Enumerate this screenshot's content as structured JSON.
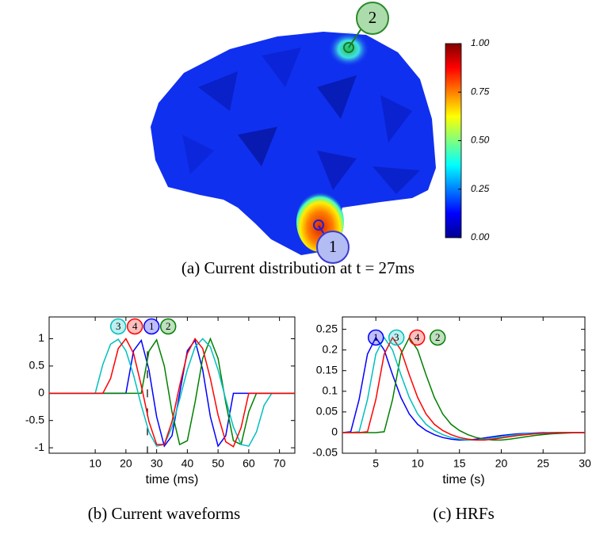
{
  "chart_data": [
    {
      "type": "colorbar",
      "caption": "(a) Current distribution at t = 27ms",
      "clim": [
        0,
        1
      ],
      "cticks": [
        {
          "value": 0,
          "label": "0.00"
        },
        {
          "value": 0.25,
          "label": "0.25"
        },
        {
          "value": 0.5,
          "label": "0.50"
        },
        {
          "value": 0.75,
          "label": "0.75"
        },
        {
          "value": 1,
          "label": "1.00"
        }
      ],
      "markers": [
        "1",
        "2"
      ]
    },
    {
      "type": "line",
      "caption": "(b) Current waveforms",
      "xlabel": "time (ms)",
      "x": [
        -5,
        -2.5,
        0,
        2.5,
        5,
        7.5,
        10,
        12.5,
        15,
        17.5,
        20,
        22.5,
        25,
        27.5,
        30,
        32.5,
        35,
        37.5,
        40,
        42.5,
        45,
        47.5,
        50,
        52.5,
        55,
        57.5,
        60,
        62.5,
        65,
        67.5,
        70,
        72.5,
        75
      ],
      "xlim": [
        -5,
        75
      ],
      "ylim": [
        -1.1,
        1.4
      ],
      "xticks": [
        10,
        20,
        30,
        40,
        50,
        60,
        70
      ],
      "yticks": [
        -1,
        -0.5,
        0,
        0.5,
        1
      ],
      "cursor": 27,
      "series": [
        {
          "name": "1",
          "color": "#0000ff",
          "values": [
            0,
            0,
            0,
            0,
            0,
            0,
            0,
            0,
            0,
            0,
            0,
            0.78,
            0.97,
            0.43,
            -0.43,
            -0.97,
            -0.78,
            0,
            0.78,
            0.97,
            0.43,
            -0.43,
            -0.97,
            -0.78,
            0,
            0,
            0,
            0,
            0,
            0,
            0,
            0,
            0
          ]
        },
        {
          "name": "2",
          "color": "#008000",
          "values": [
            0,
            0,
            0,
            0,
            0,
            0,
            0,
            0,
            0,
            0,
            0,
            0,
            0,
            0.77,
            0.98,
            0.5,
            -0.34,
            -0.94,
            -0.87,
            -0.17,
            0.64,
            1.0,
            0.64,
            -0.17,
            -0.87,
            -0.94,
            -0.34,
            0,
            0,
            0,
            0,
            0,
            0
          ]
        },
        {
          "name": "3",
          "color": "#00bfbf",
          "values": [
            0,
            0,
            0,
            0,
            0,
            0,
            0,
            0.53,
            0.9,
            0.99,
            0.78,
            0.33,
            -0.22,
            -0.71,
            -0.97,
            -0.94,
            -0.62,
            -0.11,
            0.43,
            0.85,
            1,
            0.85,
            0.43,
            -0.11,
            -0.62,
            -0.94,
            -0.97,
            -0.71,
            -0.22,
            0,
            0,
            0,
            0
          ]
        },
        {
          "name": "4",
          "color": "#ff0000",
          "values": [
            0,
            0,
            0,
            0,
            0,
            0,
            0,
            0,
            0.27,
            0.82,
            1,
            0.73,
            0.14,
            -0.52,
            -0.94,
            -0.94,
            -0.52,
            0.14,
            0.73,
            1,
            0.82,
            0.27,
            -0.4,
            -0.89,
            -0.98,
            -0.63,
            0,
            0,
            0,
            0,
            0,
            0,
            0
          ]
        }
      ]
    },
    {
      "type": "line",
      "caption": "(c) HRFs",
      "xlabel": "time (s)",
      "x": [
        1,
        2,
        3,
        4,
        5,
        6,
        7,
        8,
        9,
        10,
        11,
        12,
        13,
        14,
        15,
        16,
        17,
        18,
        19,
        20,
        21,
        22,
        23,
        24,
        25,
        26,
        27,
        28,
        29,
        30
      ],
      "xlim": [
        1,
        30
      ],
      "ylim": [
        -0.05,
        0.28
      ],
      "xticks": [
        5,
        10,
        15,
        20,
        25,
        30
      ],
      "yticks": [
        -0.05,
        0,
        0.05,
        0.1,
        0.15,
        0.2,
        0.25
      ],
      "series": [
        {
          "name": "1",
          "color": "#0000ff",
          "values": [
            0,
            0.002,
            0.08,
            0.19,
            0.23,
            0.2,
            0.14,
            0.085,
            0.045,
            0.02,
            0.005,
            -0.005,
            -0.012,
            -0.016,
            -0.018,
            -0.018,
            -0.016,
            -0.013,
            -0.01,
            -0.007,
            -0.005,
            -0.003,
            -0.002,
            -0.001,
            0,
            0,
            0,
            0,
            0,
            0
          ]
        },
        {
          "name": "2",
          "color": "#008000",
          "values": [
            0,
            0,
            0,
            0,
            0,
            0.002,
            0.08,
            0.19,
            0.23,
            0.2,
            0.14,
            0.085,
            0.045,
            0.02,
            0.005,
            -0.005,
            -0.012,
            -0.016,
            -0.018,
            -0.018,
            -0.016,
            -0.013,
            -0.01,
            -0.007,
            -0.005,
            -0.003,
            -0.002,
            -0.001,
            0,
            0
          ]
        },
        {
          "name": "3",
          "color": "#00bfbf",
          "values": [
            0,
            0,
            0.002,
            0.08,
            0.19,
            0.23,
            0.2,
            0.14,
            0.085,
            0.045,
            0.02,
            0.005,
            -0.005,
            -0.012,
            -0.016,
            -0.018,
            -0.018,
            -0.016,
            -0.013,
            -0.01,
            -0.007,
            -0.005,
            -0.003,
            -0.002,
            -0.001,
            0,
            0,
            0,
            0,
            0
          ]
        },
        {
          "name": "4",
          "color": "#ff0000",
          "values": [
            0,
            0,
            0,
            0.002,
            0.08,
            0.19,
            0.23,
            0.2,
            0.14,
            0.085,
            0.045,
            0.02,
            0.005,
            -0.005,
            -0.012,
            -0.016,
            -0.018,
            -0.018,
            -0.016,
            -0.013,
            -0.01,
            -0.007,
            -0.005,
            -0.003,
            -0.002,
            -0.001,
            0,
            0,
            0,
            0
          ]
        }
      ]
    }
  ]
}
